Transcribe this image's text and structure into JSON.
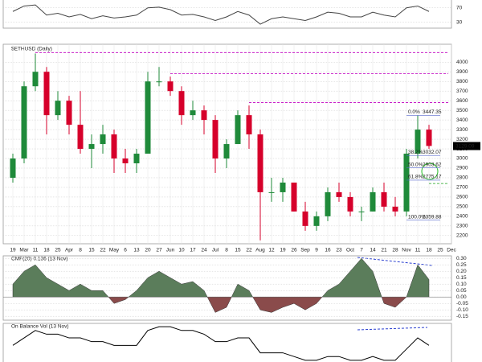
{
  "chart_data": [
    {
      "type": "line",
      "title": "RSI(14)",
      "values": [
        60,
        75,
        78,
        50,
        55,
        45,
        52,
        40,
        48,
        42,
        45,
        50,
        70,
        72,
        65,
        50,
        52,
        45,
        35,
        45,
        60,
        50,
        25,
        40,
        45,
        40,
        35,
        45,
        58,
        55,
        45,
        45,
        58,
        50,
        45,
        70,
        75,
        60
      ],
      "color": "#444444",
      "ylim": [
        14,
        96
      ],
      "yticks": [
        30,
        70
      ]
    },
    {
      "type": "candlestick",
      "title": "$ETHUSD (Daily)",
      "last": 3129.09,
      "categories": [
        "19",
        "Mar",
        "11",
        "18",
        "25",
        "Apr",
        "8",
        "15",
        "22",
        "May",
        "6",
        "13",
        "20",
        "27",
        "Jun",
        "10",
        "17",
        "24",
        "Jul",
        "8",
        "15",
        "22",
        "Aug",
        "12",
        "19",
        "26",
        "Sep",
        "9",
        "16",
        "23",
        "Oct",
        "7",
        "14",
        "21",
        "28",
        "Nov",
        "11",
        "18",
        "25",
        "Dec"
      ],
      "open": [
        2800,
        3000,
        3750,
        3900,
        3450,
        3600,
        3350,
        3100,
        3150,
        3250,
        3000,
        2950,
        3050,
        3800,
        3800,
        3700,
        3450,
        3500,
        3400,
        3000,
        3150,
        3450,
        3250,
        2650,
        2650,
        2750,
        2450,
        2300,
        2400,
        2650,
        2600,
        2450,
        2450,
        2650,
        2500,
        2450,
        3050,
        3300,
        null,
        null
      ],
      "high": [
        3050,
        3800,
        4090,
        3950,
        3700,
        3650,
        3700,
        3250,
        3350,
        3300,
        3100,
        3100,
        3900,
        3950,
        3850,
        3750,
        3600,
        3550,
        3450,
        3200,
        3500,
        3550,
        3300,
        2800,
        2800,
        2750,
        2550,
        2450,
        2700,
        2750,
        2650,
        2500,
        2700,
        2750,
        2600,
        3100,
        3447,
        3350,
        null,
        null
      ],
      "low": [
        2750,
        2950,
        3700,
        3250,
        3400,
        3250,
        3050,
        2900,
        3050,
        2850,
        2850,
        2850,
        3050,
        3750,
        3650,
        3350,
        3400,
        3250,
        2850,
        2900,
        3150,
        3100,
        2150,
        2550,
        2550,
        2450,
        2250,
        2250,
        2350,
        2550,
        2400,
        2350,
        2450,
        2450,
        2400,
        2400,
        3000,
        3100,
        null,
        null
      ],
      "close": [
        3000,
        3750,
        3900,
        3450,
        3600,
        3350,
        3100,
        3150,
        3250,
        3000,
        2950,
        3050,
        3800,
        3800,
        3700,
        3450,
        3500,
        3400,
        3000,
        3150,
        3450,
        3250,
        2650,
        2650,
        2750,
        2450,
        2300,
        2400,
        2650,
        2600,
        2450,
        2450,
        2650,
        2500,
        2450,
        3050,
        3300,
        3130,
        null,
        null
      ],
      "up_color": "#1f8a3a",
      "down_color": "#d6002b",
      "ylim": [
        2115,
        4186
      ],
      "yticks": [
        2200,
        2300,
        2400,
        2500,
        2600,
        2700,
        2800,
        2900,
        3000,
        3100,
        3200,
        3300,
        3400,
        3500,
        3600,
        3700,
        3800,
        3900,
        4000
      ],
      "grid": true,
      "levels": [
        {
          "value": 4100,
          "color": "#c000c0"
        },
        {
          "value": 3880,
          "color": "#c000c0"
        },
        {
          "value": 3580,
          "color": "#c000c0"
        },
        {
          "value": 2740,
          "color": "#1aa01a"
        }
      ],
      "fib_levels": [
        {
          "label": "0.0%",
          "value": 3447.35
        },
        {
          "label": "38.2% ",
          "value": 3032.07
        },
        {
          "label": "50.0%",
          "value": 2903.62
        },
        {
          "label": "61.8%",
          "value": 2775.17
        },
        {
          "label": "100.0%",
          "value": 2359.88
        }
      ]
    },
    {
      "type": "area",
      "title": "CMF(20) 0.136 (13 Nov)",
      "values": [
        0.1,
        0.2,
        0.25,
        0.15,
        0.1,
        0.05,
        0.1,
        0.05,
        0.05,
        -0.05,
        -0.02,
        0.05,
        0.15,
        0.2,
        0.15,
        0.1,
        0.12,
        0.05,
        -0.12,
        -0.08,
        0.1,
        0.05,
        -0.1,
        -0.12,
        -0.08,
        -0.05,
        -0.1,
        -0.05,
        0.05,
        0.1,
        0.2,
        0.3,
        0.2,
        -0.05,
        -0.08,
        0,
        0.25,
        0.136
      ],
      "pos_color": "#5b7d5b",
      "neg_color": "#8a4b4b",
      "ylim": [
        -0.18,
        0.32
      ],
      "yticks": [
        {
          "value": 0.3,
          "label": "0.30"
        },
        {
          "value": 0.25,
          "label": "0.25"
        },
        {
          "value": 0.2,
          "label": "0.20"
        },
        {
          "value": 0.15,
          "label": "0.15"
        },
        {
          "value": 0.1,
          "label": "0.10"
        },
        {
          "value": 0.05,
          "label": "0.05"
        },
        {
          "value": 0,
          "label": "0.00"
        },
        {
          "value": -0.05,
          "label": "-0.05"
        },
        {
          "value": -0.1,
          "label": "-0.10"
        },
        {
          "value": -0.15,
          "label": "-0.15"
        }
      ]
    },
    {
      "type": "line",
      "title": "On Balance Vol (13 Nov)",
      "values": [
        10,
        12,
        14,
        13,
        13,
        12,
        12,
        11,
        11,
        10,
        10,
        10,
        14,
        15,
        15,
        14,
        14,
        13,
        11,
        11,
        12,
        12,
        8,
        8,
        8,
        7,
        6,
        6,
        7,
        7,
        6,
        6,
        7,
        6,
        6,
        9,
        12,
        10
      ],
      "color": "#000000"
    }
  ]
}
